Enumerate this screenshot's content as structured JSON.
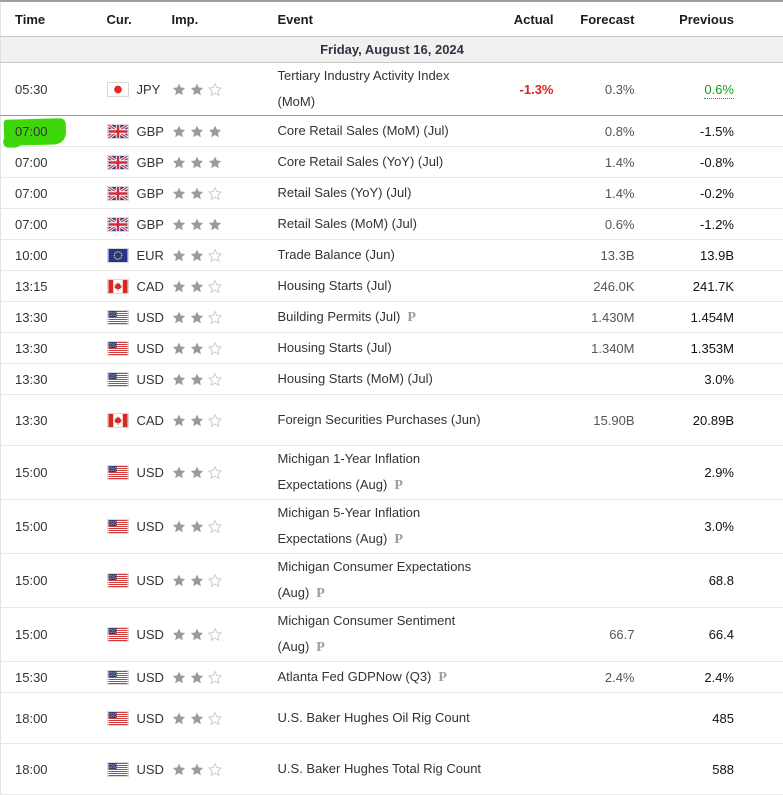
{
  "header": {
    "columns": [
      {
        "key": "time",
        "label": "Time"
      },
      {
        "key": "cur",
        "label": "Cur."
      },
      {
        "key": "imp",
        "label": "Imp."
      },
      {
        "key": "event",
        "label": "Event"
      },
      {
        "key": "actual",
        "label": "Actual"
      },
      {
        "key": "forecast",
        "label": "Forecast"
      },
      {
        "key": "previous",
        "label": "Previous"
      }
    ]
  },
  "date_row": {
    "label": "Friday, August 16, 2024"
  },
  "preliminary_glyph": "P",
  "colors": {
    "actual_negative_red": "#dd2222",
    "previous_positive_green": "#15a015",
    "highlight_marker_green": "#3ed70c",
    "date_row_background": "#f1f1f1"
  },
  "annotation": {
    "highlighted_time": "07:00",
    "highlighted_row_event": "Core Retail Sales (MoM) (Jul)"
  },
  "rows": [
    {
      "time": "05:30",
      "currency": "JPY",
      "flag": "japan",
      "importance": 2,
      "event": "Tertiary Industry Activity Index (MoM)",
      "preliminary": false,
      "actual": "-1.3%",
      "actual_style": "red",
      "forecast": "0.3%",
      "previous": "0.6%",
      "previous_style": "green-link",
      "highlighted": false,
      "selected": false,
      "two_line": true
    },
    {
      "time": "07:00",
      "currency": "GBP",
      "flag": "uk",
      "importance": 3,
      "event": "Core Retail Sales (MoM) (Jul)",
      "preliminary": false,
      "actual": "",
      "forecast": "0.8%",
      "previous": "-1.5%",
      "highlighted": true,
      "selected": true,
      "two_line": false
    },
    {
      "time": "07:00",
      "currency": "GBP",
      "flag": "uk",
      "importance": 3,
      "event": "Core Retail Sales (YoY) (Jul)",
      "preliminary": false,
      "actual": "",
      "forecast": "1.4%",
      "previous": "-0.8%",
      "highlighted": false,
      "selected": false,
      "two_line": false
    },
    {
      "time": "07:00",
      "currency": "GBP",
      "flag": "uk",
      "importance": 2,
      "event": "Retail Sales (YoY) (Jul)",
      "preliminary": false,
      "actual": "",
      "forecast": "1.4%",
      "previous": "-0.2%",
      "highlighted": false,
      "selected": false,
      "two_line": false
    },
    {
      "time": "07:00",
      "currency": "GBP",
      "flag": "uk",
      "importance": 3,
      "event": "Retail Sales (MoM) (Jul)",
      "preliminary": false,
      "actual": "",
      "forecast": "0.6%",
      "previous": "-1.2%",
      "highlighted": false,
      "selected": false,
      "two_line": false
    },
    {
      "time": "10:00",
      "currency": "EUR",
      "flag": "eu",
      "importance": 2,
      "event": "Trade Balance (Jun)",
      "preliminary": false,
      "actual": "",
      "forecast": "13.3B",
      "previous": "13.9B",
      "highlighted": false,
      "selected": false,
      "two_line": false
    },
    {
      "time": "13:15",
      "currency": "CAD",
      "flag": "canada",
      "importance": 2,
      "event": "Housing Starts (Jul)",
      "preliminary": false,
      "actual": "",
      "forecast": "246.0K",
      "previous": "241.7K",
      "highlighted": false,
      "selected": false,
      "two_line": false
    },
    {
      "time": "13:30",
      "currency": "USD",
      "flag": "us",
      "importance": 2,
      "event": "Building Permits (Jul)",
      "preliminary": true,
      "actual": "",
      "forecast": "1.430M",
      "previous": "1.454M",
      "highlighted": false,
      "selected": false,
      "two_line": false
    },
    {
      "time": "13:30",
      "currency": "USD",
      "flag": "us",
      "importance": 2,
      "event": "Housing Starts (Jul)",
      "preliminary": false,
      "actual": "",
      "forecast": "1.340M",
      "previous": "1.353M",
      "highlighted": false,
      "selected": false,
      "two_line": false
    },
    {
      "time": "13:30",
      "currency": "USD",
      "flag": "us",
      "importance": 2,
      "event": "Housing Starts (MoM) (Jul)",
      "preliminary": false,
      "actual": "",
      "forecast": "",
      "previous": "3.0%",
      "highlighted": false,
      "selected": false,
      "two_line": false
    },
    {
      "time": "13:30",
      "currency": "CAD",
      "flag": "canada",
      "importance": 2,
      "event": "Foreign Securities Purchases (Jun)",
      "preliminary": false,
      "actual": "",
      "forecast": "15.90B",
      "previous": "20.89B",
      "highlighted": false,
      "selected": false,
      "two_line": true
    },
    {
      "time": "15:00",
      "currency": "USD",
      "flag": "us",
      "importance": 2,
      "event": "Michigan 1-Year Inflation Expectations (Aug)",
      "preliminary": true,
      "actual": "",
      "forecast": "",
      "previous": "2.9%",
      "highlighted": false,
      "selected": false,
      "two_line": true
    },
    {
      "time": "15:00",
      "currency": "USD",
      "flag": "us",
      "importance": 2,
      "event": "Michigan 5-Year Inflation Expectations (Aug)",
      "preliminary": true,
      "actual": "",
      "forecast": "",
      "previous": "3.0%",
      "highlighted": false,
      "selected": false,
      "two_line": true
    },
    {
      "time": "15:00",
      "currency": "USD",
      "flag": "us",
      "importance": 2,
      "event": "Michigan Consumer Expectations (Aug)",
      "preliminary": true,
      "actual": "",
      "forecast": "",
      "previous": "68.8",
      "highlighted": false,
      "selected": false,
      "two_line": true
    },
    {
      "time": "15:00",
      "currency": "USD",
      "flag": "us",
      "importance": 2,
      "event": "Michigan Consumer Sentiment (Aug)",
      "preliminary": true,
      "actual": "",
      "forecast": "66.7",
      "previous": "66.4",
      "highlighted": false,
      "selected": false,
      "two_line": true
    },
    {
      "time": "15:30",
      "currency": "USD",
      "flag": "us",
      "importance": 2,
      "event": "Atlanta Fed GDPNow (Q3)",
      "preliminary": true,
      "actual": "",
      "forecast": "2.4%",
      "previous": "2.4%",
      "highlighted": false,
      "selected": false,
      "two_line": false
    },
    {
      "time": "18:00",
      "currency": "USD",
      "flag": "us",
      "importance": 2,
      "event": "U.S. Baker Hughes Oil Rig Count",
      "preliminary": false,
      "actual": "",
      "forecast": "",
      "previous": "485",
      "highlighted": false,
      "selected": false,
      "two_line": true
    },
    {
      "time": "18:00",
      "currency": "USD",
      "flag": "us",
      "importance": 2,
      "event": "U.S. Baker Hughes Total Rig Count",
      "preliminary": false,
      "actual": "",
      "forecast": "",
      "previous": "588",
      "highlighted": false,
      "selected": false,
      "two_line": true
    }
  ]
}
